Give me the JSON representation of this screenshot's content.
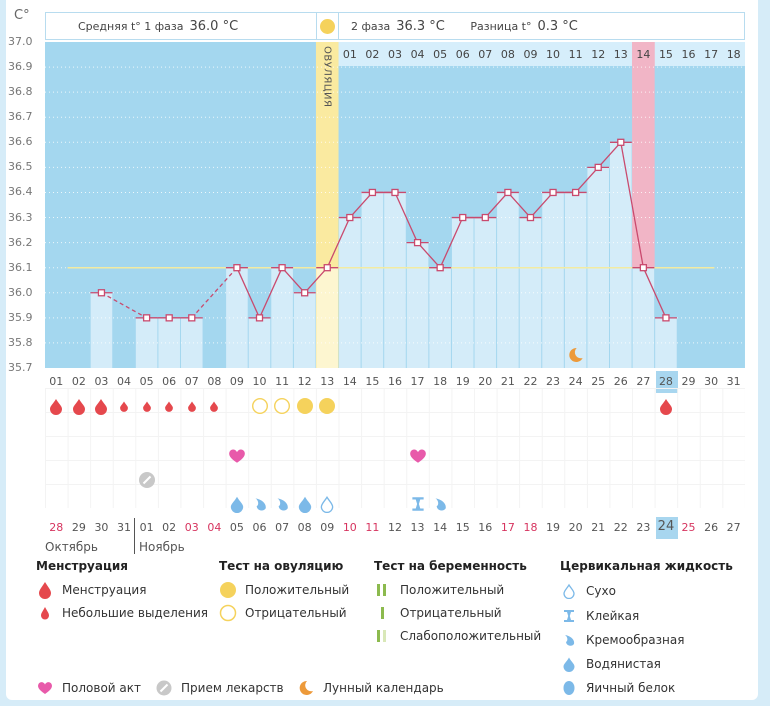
{
  "header": {
    "unit": "C°",
    "phase1_label": "Средняя t° 1 фаза",
    "phase1_value": "36.0 °C",
    "phase2_label": "2 фаза",
    "phase2_value": "36.3 °C",
    "diff_label": "Разница t°",
    "diff_value": "0.3 °C",
    "ovulation_label": "ОВУЛЯЦИЯ"
  },
  "colors": {
    "sky": "#a4d7ef",
    "bar": "#d4ecf9",
    "line": "#c94a6e",
    "coverline": "#f3eba2",
    "ovulation": "#faeaa0",
    "period_band": "#f1b5c6",
    "today": "#a8d6ef",
    "red_day": "#d6345f",
    "menstruation": "#e5484d",
    "ovulation_test": "#f5d25c",
    "heart": "#e85aaa",
    "pill": "#c8c8c8",
    "moon": "#ed9a3a",
    "fluid": "#7cb9e8",
    "preg_test": "#8cba4e"
  },
  "chart_data": {
    "type": "line",
    "title": "",
    "xlabel": "",
    "ylabel": "C°",
    "ylim": [
      35.7,
      37.0
    ],
    "yticks": [
      "37.0",
      "36.9",
      "36.8",
      "36.7",
      "36.6",
      "36.5",
      "36.4",
      "36.3",
      "36.2",
      "36.1",
      "36.0",
      "35.9",
      "35.8",
      "35.7"
    ],
    "cycle_days": [
      "01",
      "02",
      "03",
      "04",
      "05",
      "06",
      "07",
      "08",
      "09",
      "10",
      "11",
      "12",
      "13",
      "14",
      "15",
      "16",
      "17",
      "18",
      "19",
      "20",
      "21",
      "22",
      "23",
      "24",
      "25",
      "26",
      "27",
      "28",
      "29",
      "30",
      "31"
    ],
    "phase2_days": [
      "01",
      "02",
      "03",
      "04",
      "05",
      "06",
      "07",
      "08",
      "09",
      "10",
      "11",
      "12",
      "13",
      "14",
      "15",
      "16",
      "17",
      "18"
    ],
    "temperatures": [
      null,
      null,
      36.0,
      null,
      35.9,
      35.9,
      35.9,
      null,
      36.1,
      35.9,
      36.1,
      36.0,
      36.1,
      36.3,
      36.4,
      36.4,
      36.2,
      36.1,
      36.3,
      36.3,
      36.4,
      36.3,
      36.4,
      36.4,
      36.5,
      36.6,
      36.1,
      35.9,
      null,
      null,
      null
    ],
    "coverline": 36.1,
    "ovulation_day": 13,
    "highlight_day": 27,
    "highlight_phase2_label": "14",
    "today_day": 28,
    "moon_day": 24
  },
  "calendar": {
    "dates": [
      {
        "d": "28",
        "red": true
      },
      {
        "d": "29",
        "red": false
      },
      {
        "d": "30",
        "red": false
      },
      {
        "d": "31",
        "red": false
      },
      {
        "d": "01",
        "red": false
      },
      {
        "d": "02",
        "red": false
      },
      {
        "d": "03",
        "red": true
      },
      {
        "d": "04",
        "red": true
      },
      {
        "d": "05",
        "red": false
      },
      {
        "d": "06",
        "red": false
      },
      {
        "d": "07",
        "red": false
      },
      {
        "d": "08",
        "red": false
      },
      {
        "d": "09",
        "red": false
      },
      {
        "d": "10",
        "red": true
      },
      {
        "d": "11",
        "red": true
      },
      {
        "d": "12",
        "red": false
      },
      {
        "d": "13",
        "red": false
      },
      {
        "d": "14",
        "red": false
      },
      {
        "d": "15",
        "red": false
      },
      {
        "d": "16",
        "red": false
      },
      {
        "d": "17",
        "red": true
      },
      {
        "d": "18",
        "red": true
      },
      {
        "d": "19",
        "red": false
      },
      {
        "d": "20",
        "red": false
      },
      {
        "d": "21",
        "red": false
      },
      {
        "d": "22",
        "red": false
      },
      {
        "d": "23",
        "red": false
      },
      {
        "d": "24",
        "red": false
      },
      {
        "d": "25",
        "red": true
      },
      {
        "d": "26",
        "red": false
      },
      {
        "d": "27",
        "red": false
      }
    ],
    "month1": "Октябрь",
    "month2": "Ноябрь",
    "menstruation": [
      {
        "day": 1,
        "type": "heavy"
      },
      {
        "day": 2,
        "type": "heavy"
      },
      {
        "day": 3,
        "type": "heavy"
      },
      {
        "day": 4,
        "type": "light"
      },
      {
        "day": 5,
        "type": "light"
      },
      {
        "day": 6,
        "type": "light"
      },
      {
        "day": 7,
        "type": "light"
      },
      {
        "day": 8,
        "type": "light"
      },
      {
        "day": 28,
        "type": "heavy"
      }
    ],
    "ovulation_tests": [
      {
        "day": 10,
        "result": "negative"
      },
      {
        "day": 11,
        "result": "negative"
      },
      {
        "day": 12,
        "result": "positive"
      },
      {
        "day": 13,
        "result": "positive"
      }
    ],
    "intercourse": [
      9,
      17
    ],
    "medication": [
      5
    ],
    "fluid": [
      {
        "day": 9,
        "type": "watery"
      },
      {
        "day": 10,
        "type": "creamy"
      },
      {
        "day": 11,
        "type": "creamy"
      },
      {
        "day": 12,
        "type": "watery"
      },
      {
        "day": 13,
        "type": "dry"
      },
      {
        "day": 17,
        "type": "sticky"
      },
      {
        "day": 18,
        "type": "creamy"
      }
    ]
  },
  "legend": {
    "menstruation": {
      "title": "Менструация",
      "items": [
        "Менструация",
        "Небольшие выделения"
      ]
    },
    "ovulation_test": {
      "title": "Тест на овуляцию",
      "items": [
        "Положительный",
        "Отрицательный"
      ]
    },
    "pregnancy_test": {
      "title": "Тест на беременность",
      "items": [
        "Положительный",
        "Отрицательный",
        "Слабоположительный"
      ]
    },
    "cervical_fluid": {
      "title": "Цервикальная жидкость",
      "items": [
        "Сухо",
        "Клейкая",
        "Кремообразная",
        "Водянистая",
        "Яичный белок"
      ]
    },
    "other": [
      "Половой акт",
      "Прием лекарств",
      "Лунный календарь"
    ]
  }
}
